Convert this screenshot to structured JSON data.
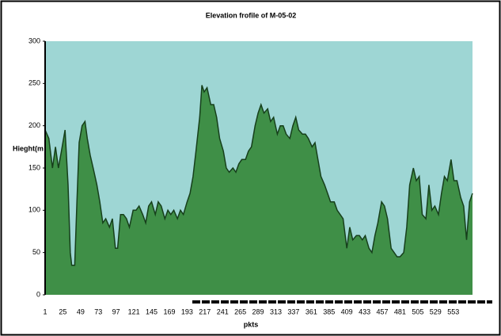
{
  "chart_data": {
    "type": "area",
    "title": "Elevation frofile of M-05-02",
    "ylabel": "Hieght(m",
    "xlabel": "pkts",
    "x": [
      1,
      6,
      11,
      15,
      19,
      23,
      28,
      32,
      35,
      37,
      41,
      44,
      47,
      51,
      55,
      58,
      62,
      66,
      71,
      75,
      79,
      83,
      88,
      92,
      96,
      99,
      103,
      107,
      111,
      115,
      120,
      124,
      128,
      133,
      137,
      141,
      145,
      150,
      154,
      158,
      163,
      167,
      171,
      175,
      180,
      184,
      188,
      193,
      197,
      201,
      205,
      210,
      213,
      216,
      220,
      225,
      229,
      233,
      237,
      242,
      246,
      250,
      255,
      259,
      263,
      267,
      272,
      276,
      280,
      285,
      289,
      293,
      297,
      302,
      306,
      310,
      315,
      319,
      323,
      327,
      332,
      336,
      340,
      344,
      349,
      353,
      357,
      362,
      366,
      370,
      374,
      379,
      383,
      387,
      392,
      396,
      400,
      404,
      409,
      413,
      417,
      422,
      426,
      430,
      434,
      439,
      443,
      447,
      451,
      456,
      460,
      464,
      469,
      473,
      477,
      481,
      486,
      490,
      494,
      499,
      503,
      507,
      511,
      516,
      520,
      524,
      528,
      533,
      537,
      541,
      545,
      550,
      554,
      558,
      563,
      567,
      571,
      575,
      579
    ],
    "values": [
      195,
      185,
      150,
      175,
      150,
      170,
      195,
      130,
      50,
      35,
      35,
      110,
      180,
      200,
      205,
      185,
      165,
      150,
      130,
      110,
      85,
      90,
      80,
      90,
      55,
      55,
      95,
      95,
      90,
      80,
      100,
      100,
      105,
      95,
      85,
      105,
      110,
      95,
      110,
      105,
      90,
      100,
      95,
      100,
      90,
      100,
      95,
      110,
      120,
      140,
      170,
      210,
      248,
      240,
      245,
      225,
      225,
      210,
      185,
      170,
      150,
      145,
      150,
      145,
      155,
      160,
      160,
      170,
      175,
      200,
      215,
      225,
      215,
      220,
      205,
      210,
      190,
      200,
      200,
      190,
      185,
      200,
      210,
      195,
      190,
      190,
      185,
      175,
      180,
      160,
      140,
      130,
      120,
      110,
      110,
      100,
      95,
      90,
      55,
      80,
      65,
      70,
      70,
      65,
      70,
      55,
      50,
      70,
      85,
      110,
      105,
      90,
      55,
      50,
      45,
      45,
      50,
      80,
      130,
      150,
      135,
      140,
      95,
      90,
      130,
      100,
      105,
      95,
      120,
      140,
      135,
      160,
      135,
      135,
      115,
      105,
      65,
      110,
      120
    ],
    "xlim": [
      1,
      579
    ],
    "ylim": [
      0,
      300
    ],
    "xticks": [
      1,
      25,
      49,
      73,
      97,
      121,
      145,
      169,
      193,
      217,
      241,
      265,
      289,
      313,
      337,
      361,
      385,
      409,
      433,
      457,
      481,
      505,
      529,
      553
    ],
    "yticks": [
      0,
      50,
      100,
      150,
      200,
      250,
      300
    ],
    "color": "#3f8f47",
    "line_color": "#163f1b",
    "background": "#9ed6d4"
  }
}
